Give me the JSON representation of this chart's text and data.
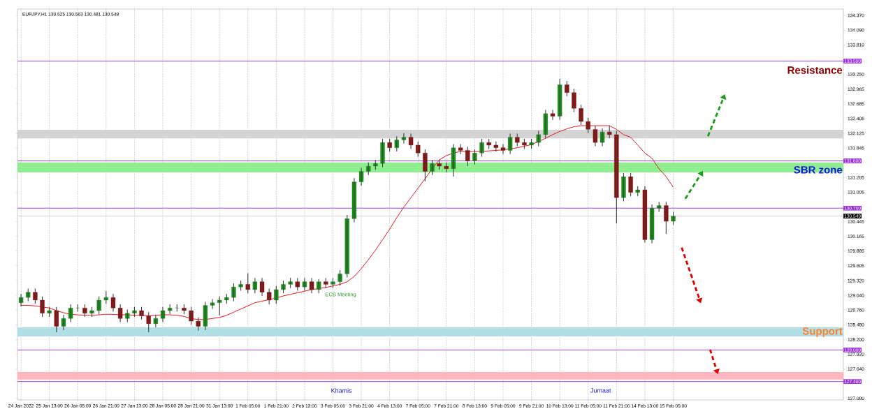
{
  "chart_data": {
    "type": "candlestick",
    "title": "EURJPY,H1  130.525 130.563 130.481 130.549",
    "categories": [
      "24 Jan 2022",
      null,
      null,
      null,
      "25 Jan 13:00",
      null,
      null,
      null,
      "26 Jan 05:00",
      null,
      null,
      null,
      "26 Jan 21:00",
      null,
      null,
      null,
      "27 Jan 13:00",
      null,
      null,
      null,
      "28 Jan 05:00",
      null,
      null,
      null,
      "28 Jan 21:00",
      null,
      null,
      null,
      "31 Jan 13:00",
      null,
      null,
      null,
      "1 Feb 05:00",
      null,
      null,
      null,
      "1 Feb 21:00",
      null,
      null,
      null,
      "2 Feb 13:00",
      null,
      null,
      null,
      "3 Feb 05:00",
      null,
      null,
      null,
      "3 Feb 21:00",
      null,
      null,
      null,
      "4 Feb 13:00",
      null,
      null,
      null,
      "7 Feb 05:00",
      null,
      null,
      null,
      "7 Feb 21:00",
      null,
      null,
      null,
      "8 Feb 13:00",
      null,
      null,
      null,
      "9 Feb 05:00",
      null,
      null,
      null,
      "9 Feb 21:00",
      null,
      null,
      null,
      "10 Feb 13:00",
      null,
      null,
      null,
      "11 Feb 05:00",
      null,
      null,
      null,
      "11 Feb 21:00",
      null,
      null,
      null,
      "14 Feb 13:00",
      null,
      null,
      null,
      "15 Feb 05:00",
      null,
      null,
      null,
      null,
      null,
      null,
      null,
      null,
      null,
      null,
      null,
      null,
      null,
      null,
      null,
      null,
      null,
      null,
      null,
      null,
      null,
      null,
      null,
      null
    ],
    "ohlc": [
      [
        128.9,
        129.07,
        128.83,
        129.0
      ],
      [
        129.0,
        129.17,
        128.93,
        129.1
      ],
      [
        129.1,
        129.17,
        128.88,
        128.95
      ],
      [
        128.95,
        129.02,
        128.63,
        128.7
      ],
      [
        128.7,
        128.82,
        128.63,
        128.75
      ],
      [
        128.75,
        128.82,
        128.34,
        128.45
      ],
      [
        128.45,
        128.67,
        128.38,
        128.6
      ],
      [
        128.6,
        128.87,
        128.53,
        128.8
      ],
      [
        128.8,
        128.87,
        128.73,
        128.8
      ],
      [
        128.8,
        128.87,
        128.63,
        128.7
      ],
      [
        128.7,
        128.82,
        128.63,
        128.75
      ],
      [
        128.75,
        129.02,
        128.68,
        128.95
      ],
      [
        128.95,
        129.12,
        128.88,
        129.0
      ],
      [
        129.0,
        129.07,
        128.73,
        128.8
      ],
      [
        128.8,
        128.87,
        128.53,
        128.6
      ],
      [
        128.6,
        128.77,
        128.53,
        128.7
      ],
      [
        128.7,
        128.82,
        128.63,
        128.75
      ],
      [
        128.75,
        128.82,
        128.58,
        128.65
      ],
      [
        128.65,
        128.72,
        128.34,
        128.5
      ],
      [
        128.5,
        128.67,
        128.43,
        128.6
      ],
      [
        128.6,
        128.82,
        128.53,
        128.75
      ],
      [
        128.75,
        128.87,
        128.68,
        128.8
      ],
      [
        128.8,
        128.87,
        128.73,
        128.8
      ],
      [
        128.8,
        128.87,
        128.68,
        128.75
      ],
      [
        128.75,
        128.82,
        128.48,
        128.55
      ],
      [
        128.55,
        128.62,
        128.37,
        128.45
      ],
      [
        128.45,
        128.92,
        128.38,
        128.85
      ],
      [
        128.85,
        128.97,
        128.78,
        128.9
      ],
      [
        128.9,
        129.02,
        128.66,
        128.95
      ],
      [
        128.95,
        129.07,
        128.88,
        129.0
      ],
      [
        129.0,
        129.27,
        128.93,
        129.2
      ],
      [
        129.2,
        129.32,
        129.13,
        129.25
      ],
      [
        129.25,
        129.46,
        129.08,
        129.15
      ],
      [
        129.15,
        129.37,
        129.08,
        129.3
      ],
      [
        129.3,
        129.37,
        129.03,
        129.1
      ],
      [
        129.1,
        129.17,
        128.87,
        128.95
      ],
      [
        128.95,
        129.22,
        128.88,
        129.15
      ],
      [
        129.15,
        129.32,
        129.08,
        129.25
      ],
      [
        129.25,
        129.37,
        129.18,
        129.3
      ],
      [
        129.3,
        129.37,
        129.13,
        129.2
      ],
      [
        129.2,
        129.37,
        129.13,
        129.3
      ],
      [
        129.3,
        129.37,
        129.08,
        129.15
      ],
      [
        129.15,
        129.35,
        129.08,
        129.3
      ],
      [
        129.3,
        129.37,
        129.18,
        129.25
      ],
      [
        129.25,
        129.37,
        129.18,
        129.3
      ],
      [
        129.3,
        129.52,
        129.23,
        129.45
      ],
      [
        129.45,
        130.57,
        129.38,
        130.5
      ],
      [
        130.5,
        131.27,
        130.43,
        131.2
      ],
      [
        131.2,
        131.47,
        131.13,
        131.4
      ],
      [
        131.4,
        131.57,
        131.33,
        131.5
      ],
      [
        131.5,
        131.62,
        131.43,
        131.55
      ],
      [
        131.55,
        132.02,
        131.48,
        131.95
      ],
      [
        131.95,
        132.02,
        131.78,
        131.85
      ],
      [
        131.85,
        132.07,
        131.78,
        132.0
      ],
      [
        132.0,
        132.13,
        131.93,
        132.05
      ],
      [
        132.05,
        132.12,
        131.83,
        131.9
      ],
      [
        131.9,
        131.97,
        131.68,
        131.75
      ],
      [
        131.75,
        131.82,
        131.21,
        131.4
      ],
      [
        131.4,
        131.62,
        131.33,
        131.55
      ],
      [
        131.55,
        131.62,
        131.43,
        131.5
      ],
      [
        131.5,
        131.57,
        131.38,
        131.45
      ],
      [
        131.45,
        131.92,
        131.3,
        131.85
      ],
      [
        131.85,
        131.92,
        131.73,
        131.8
      ],
      [
        131.8,
        131.87,
        131.5,
        131.6
      ],
      [
        131.6,
        131.82,
        131.53,
        131.75
      ],
      [
        131.75,
        132.02,
        131.68,
        131.95
      ],
      [
        131.95,
        132.02,
        131.83,
        131.9
      ],
      [
        131.9,
        131.97,
        131.78,
        131.85
      ],
      [
        131.85,
        131.92,
        131.73,
        131.8
      ],
      [
        131.8,
        132.12,
        131.73,
        132.05
      ],
      [
        132.05,
        132.12,
        131.88,
        131.95
      ],
      [
        131.95,
        132.02,
        131.83,
        131.9
      ],
      [
        131.9,
        132.02,
        131.83,
        131.95
      ],
      [
        131.95,
        132.17,
        131.88,
        132.1
      ],
      [
        132.1,
        132.57,
        132.03,
        132.5
      ],
      [
        132.5,
        132.57,
        132.38,
        132.45
      ],
      [
        132.45,
        133.16,
        132.38,
        133.05
      ],
      [
        133.05,
        133.12,
        132.83,
        132.9
      ],
      [
        132.9,
        132.97,
        132.53,
        132.6
      ],
      [
        132.6,
        132.67,
        132.28,
        132.35
      ],
      [
        132.35,
        132.42,
        132.13,
        132.2
      ],
      [
        132.2,
        132.27,
        131.88,
        131.95
      ],
      [
        131.95,
        132.22,
        131.88,
        132.15
      ],
      [
        132.15,
        132.27,
        132.03,
        132.1
      ],
      [
        132.1,
        132.17,
        130.41,
        130.9
      ],
      [
        130.9,
        131.37,
        130.83,
        131.3
      ],
      [
        131.3,
        131.37,
        130.93,
        131.0
      ],
      [
        131.0,
        131.12,
        130.93,
        131.05
      ],
      [
        131.05,
        131.12,
        130.05,
        130.1
      ],
      [
        130.1,
        130.77,
        130.03,
        130.7
      ],
      [
        130.7,
        130.82,
        130.63,
        130.75
      ],
      [
        130.75,
        130.82,
        130.21,
        130.45
      ],
      [
        130.45,
        130.63,
        130.38,
        130.55
      ],
      null,
      null,
      null,
      null,
      null,
      null,
      null,
      null,
      null,
      null,
      null,
      null,
      null,
      null,
      null,
      null,
      null,
      null,
      null,
      null,
      null,
      null,
      null,
      null
    ],
    "series": [
      {
        "type": "line",
        "color": "#e31a1c",
        "values": [
          128.85,
          128.85,
          128.84,
          128.82,
          128.8,
          128.75,
          128.71,
          128.68,
          128.67,
          128.66,
          128.66,
          128.67,
          128.68,
          128.68,
          128.67,
          128.67,
          128.66,
          128.66,
          128.65,
          128.66,
          128.67,
          128.67,
          128.66,
          128.64,
          128.6,
          128.58,
          128.58,
          128.6,
          128.62,
          128.66,
          128.72,
          128.78,
          128.84,
          128.9,
          128.93,
          128.96,
          128.99,
          129.03,
          129.06,
          129.09,
          129.12,
          129.15,
          129.17,
          129.19,
          129.22,
          129.25,
          129.3,
          129.4,
          129.55,
          129.72,
          129.9,
          130.1,
          130.3,
          130.52,
          130.72,
          130.9,
          131.08,
          131.26,
          131.45,
          131.62,
          131.7,
          131.75,
          131.78,
          131.78,
          131.78,
          131.78,
          131.79,
          131.8,
          131.81,
          131.83,
          131.85,
          131.88,
          131.91,
          131.97,
          132.03,
          132.1,
          132.16,
          132.21,
          132.25,
          132.27,
          132.27,
          132.27,
          132.27,
          132.27,
          132.2,
          132.1,
          132.05,
          131.9,
          131.75,
          131.65,
          131.45,
          131.3,
          131.1,
          null,
          null,
          null,
          null,
          null,
          null,
          null,
          null,
          null,
          null,
          null,
          null,
          null,
          null,
          null,
          null,
          null,
          null,
          null,
          null,
          null,
          null,
          null,
          null
        ]
      }
    ],
    "ylim": [
      127.05,
      134.49
    ],
    "yticks": [
      {
        "value": 127.08,
        "label": "127.080"
      },
      {
        "value": 127.64,
        "label": "127.640"
      },
      {
        "value": 127.92,
        "label": "127.920"
      },
      {
        "value": 128.2,
        "label": "128.200"
      },
      {
        "value": 128.48,
        "label": "128.480"
      },
      {
        "value": 128.76,
        "label": "128.760"
      },
      {
        "value": 129.04,
        "label": "129.040"
      },
      {
        "value": 129.32,
        "label": "129.320"
      },
      129.605,
      129.885,
      130.165,
      130.445,
      131.005,
      131.285,
      131.845,
      132.125,
      132.405,
      132.685,
      132.965,
      {
        "value": 133.25,
        "label": "133.250"
      },
      {
        "value": 133.81,
        "label": "133.810"
      },
      {
        "value": 134.09,
        "label": "134.090"
      },
      {
        "value": 134.37,
        "label": "134.370"
      }
    ],
    "grid": "x",
    "ref_lines": [
      {
        "axis": "y",
        "value": 133.5,
        "label": "133.500",
        "color": "#9b30d9"
      },
      {
        "axis": "y",
        "value": 131.6,
        "label": "131.600",
        "color": "#9b30d9"
      },
      {
        "axis": "y",
        "value": 130.7,
        "label": "130.700",
        "color": "#9b30d9"
      },
      {
        "axis": "y",
        "value": 130.549,
        "label": "130.549",
        "color": "#c8c8c8"
      },
      {
        "axis": "y",
        "value": 128.0,
        "label": "128.000",
        "color": "#9b30d9"
      },
      {
        "axis": "y",
        "value": 127.4,
        "label": "127.400",
        "color": "#9b30d9"
      }
    ],
    "bands": [
      {
        "axis": "y",
        "from": 132.03,
        "to": 132.19,
        "color": "#d3d3d3"
      },
      {
        "axis": "y",
        "from": 131.38,
        "to": 131.57,
        "color": "#90ee90"
      },
      {
        "axis": "y",
        "from": 128.26,
        "to": 128.43,
        "color": "#b0e0e6"
      },
      {
        "axis": "y",
        "from": 127.44,
        "to": 127.58,
        "color": "#ffb6c1"
      }
    ],
    "annotations": [
      "Resistance",
      {
        "text": "SBR zone",
        "y": 131.43
      },
      "Support",
      "ECB Meeting",
      "Khamis",
      "Jumaat"
    ]
  }
}
